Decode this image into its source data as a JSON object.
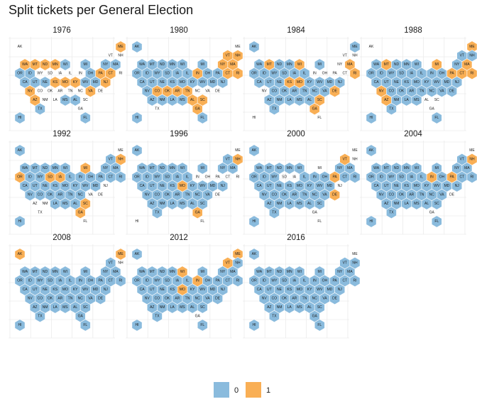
{
  "chart_data": {
    "type": "hex-tile-map",
    "title": "Split tickets per General Election",
    "legend": {
      "placement": "bottom",
      "entries": [
        {
          "label": "0",
          "color": "#8ABBDD"
        },
        {
          "label": "1",
          "color": "#F9AF55"
        }
      ]
    },
    "states": [
      "AK",
      "ME",
      "VT",
      "NH",
      "WA",
      "MT",
      "ND",
      "MN",
      "WI",
      "MI",
      "NY",
      "MA",
      "OR",
      "ID",
      "WY",
      "SD",
      "IA",
      "IL",
      "IN",
      "OH",
      "PA",
      "CT",
      "RI",
      "CA",
      "UT",
      "NE",
      "KS",
      "MO",
      "KY",
      "WV",
      "MD",
      "NJ",
      "NV",
      "CO",
      "OK",
      "AR",
      "TN",
      "NC",
      "VA",
      "DE",
      "AZ",
      "NM",
      "LA",
      "MS",
      "AL",
      "SC",
      "TX",
      "GA",
      "HI",
      "FL"
    ],
    "panels": [
      {
        "year": "1976",
        "zero": [
          "CA",
          "UT",
          "NE",
          "OR",
          "ID",
          "WI",
          "MI",
          "OH",
          "NY",
          "MA",
          "WV",
          "MD",
          "AL",
          "MS",
          "TX",
          "HI",
          "FL"
        ],
        "one": [
          "ME",
          "WA",
          "MT",
          "ND",
          "MN",
          "PA",
          "CT",
          "KY",
          "NJ",
          "NV",
          "KS",
          "MO",
          "VA",
          "AZ"
        ]
      },
      {
        "year": "1980",
        "zero": [
          "AK",
          "WA",
          "MT",
          "ND",
          "MN",
          "WI",
          "MI",
          "OR",
          "ID",
          "WY",
          "SD",
          "IA",
          "IL",
          "OH",
          "PA",
          "CA",
          "UT",
          "NE",
          "KS",
          "MO",
          "KY",
          "WV",
          "MD",
          "NJ",
          "NV",
          "AZ",
          "NM",
          "LA",
          "MS",
          "HI",
          "FL"
        ],
        "one": [
          "VT",
          "NH",
          "NY",
          "MA",
          "IN",
          "CT",
          "RI",
          "CO",
          "OK",
          "AR",
          "TN",
          "AL",
          "SC",
          "GA"
        ]
      },
      {
        "year": "1984",
        "zero": [
          "AK",
          "ME",
          "WA",
          "ND",
          "MN",
          "MI",
          "OR",
          "ID",
          "WY",
          "SD",
          "IA",
          "IL",
          "CA",
          "UT",
          "NE",
          "KY",
          "WV",
          "MD",
          "NJ",
          "CO",
          "OK",
          "AR",
          "TN",
          "NC",
          "VA",
          "AZ",
          "NM",
          "LA",
          "MS",
          "AL",
          "TX"
        ],
        "one": [
          "MT",
          "WI",
          "MA",
          "RI",
          "KS",
          "MO",
          "DE",
          "SC",
          "GA"
        ]
      },
      {
        "year": "1988",
        "zero": [
          "VT",
          "NH",
          "WA",
          "ND",
          "MN",
          "WI",
          "NY",
          "OR",
          "ID",
          "WY",
          "SD",
          "IA",
          "IL",
          "IN",
          "OH",
          "CA",
          "UT",
          "NE",
          "KS",
          "MO",
          "KY",
          "WV",
          "MD",
          "NJ",
          "CO",
          "OK",
          "AR",
          "TN",
          "NC",
          "VA",
          "DE",
          "NM",
          "LA",
          "MS",
          "TX",
          "HI",
          "FL"
        ],
        "one": [
          "ME",
          "MT",
          "MI",
          "MA",
          "PA",
          "CT",
          "RI",
          "NV",
          "AZ"
        ]
      },
      {
        "year": "1992",
        "zero": [
          "AK",
          "VT",
          "WA",
          "MT",
          "ND",
          "MN",
          "WI",
          "NY",
          "MA",
          "ID",
          "WY",
          "IL",
          "IN",
          "OH",
          "PA",
          "CT",
          "RI",
          "CA",
          "UT",
          "NE",
          "KS",
          "MO",
          "KY",
          "WV",
          "MD",
          "NV",
          "CO",
          "OK",
          "AR",
          "TN",
          "NC",
          "LA",
          "MS",
          "AL",
          "HI"
        ],
        "one": [
          "NH",
          "MI",
          "OR",
          "SD",
          "IA",
          "SC",
          "GA"
        ]
      },
      {
        "year": "1996",
        "zero": [
          "AK",
          "VT",
          "WA",
          "MT",
          "ND",
          "MN",
          "WI",
          "MI",
          "NY",
          "MA",
          "OR",
          "ID",
          "WY",
          "SD",
          "IA",
          "IL",
          "CA",
          "UT",
          "NE",
          "KS",
          "KY",
          "WV",
          "MD",
          "NJ",
          "NV",
          "CO",
          "OK",
          "AR",
          "TN",
          "NC",
          "VA",
          "AZ",
          "NM",
          "LA",
          "MS",
          "AL",
          "SC",
          "TX"
        ],
        "one": [
          "NH",
          "MO",
          "GA"
        ]
      },
      {
        "year": "2000",
        "zero": [
          "AK",
          "WA",
          "MT",
          "ND",
          "MN",
          "WI",
          "NY",
          "MA",
          "OR",
          "ID",
          "WY",
          "IL",
          "IN",
          "OH",
          "CT",
          "RI",
          "CA",
          "UT",
          "NE",
          "KS",
          "MO",
          "KY",
          "WV",
          "MD",
          "NV",
          "CO",
          "OK",
          "AR",
          "TN",
          "NC",
          "VA",
          "AZ",
          "NM",
          "LA",
          "MS",
          "AL",
          "SC",
          "TX",
          "HI"
        ],
        "one": [
          "VT",
          "PA",
          "DE"
        ]
      },
      {
        "year": "2004",
        "zero": [
          "AK",
          "VT",
          "WA",
          "MT",
          "ND",
          "MN",
          "WI",
          "MI",
          "NY",
          "MA",
          "OR",
          "ID",
          "WY",
          "SD",
          "IA",
          "IL",
          "OH",
          "CT",
          "RI",
          "CA",
          "UT",
          "NE",
          "KS",
          "MO",
          "KY",
          "WV",
          "MD",
          "NJ",
          "NV",
          "CO",
          "OK",
          "AR",
          "TN",
          "NC",
          "VA",
          "AZ",
          "NM",
          "LA",
          "MS",
          "AL",
          "SC",
          "TX",
          "HI",
          "FL"
        ],
        "one": [
          "NH",
          "IN",
          "PA"
        ]
      },
      {
        "year": "2008",
        "zero": [
          "VT",
          "WA",
          "MT",
          "ND",
          "MN",
          "WI",
          "MI",
          "NY",
          "MA",
          "OR",
          "ID",
          "WY",
          "SD",
          "IA",
          "IL",
          "IN",
          "OH",
          "PA",
          "CT",
          "RI",
          "CA",
          "UT",
          "NE",
          "KS",
          "MO",
          "KY",
          "WV",
          "MD",
          "NJ",
          "NV",
          "CO",
          "OK",
          "AR",
          "TN",
          "NC",
          "VA",
          "DE",
          "AZ",
          "NM",
          "LA",
          "MS",
          "AL",
          "SC",
          "TX",
          "GA",
          "HI",
          "FL"
        ],
        "one": [
          "AK",
          "ME"
        ]
      },
      {
        "year": "2012",
        "zero": [
          "AK",
          "NH",
          "WA",
          "MT",
          "ND",
          "MN",
          "MI",
          "NY",
          "MA",
          "OR",
          "ID",
          "WY",
          "SD",
          "IA",
          "IL",
          "OH",
          "PA",
          "CT",
          "RI",
          "CA",
          "UT",
          "NE",
          "KS",
          "KY",
          "WV",
          "MD",
          "NJ",
          "NV",
          "CO",
          "OK",
          "AR",
          "TN",
          "NC",
          "VA",
          "DE",
          "AZ",
          "NM",
          "LA",
          "MS",
          "AL",
          "SC",
          "TX",
          "HI",
          "FL"
        ],
        "one": [
          "ME",
          "VT",
          "WI",
          "IN",
          "MO"
        ]
      },
      {
        "year": "2016",
        "zero": [
          "AK",
          "VT",
          "NH",
          "WA",
          "MT",
          "ND",
          "MN",
          "WI",
          "MI",
          "NY",
          "MA",
          "OR",
          "ID",
          "WY",
          "SD",
          "IA",
          "IL",
          "IN",
          "OH",
          "PA",
          "CT",
          "RI",
          "CA",
          "UT",
          "NE",
          "KS",
          "MO",
          "KY",
          "WV",
          "MD",
          "NJ",
          "NV",
          "CO",
          "OK",
          "AR",
          "TN",
          "NC",
          "VA",
          "DE",
          "AZ",
          "NM",
          "LA",
          "MS",
          "AL",
          "SC",
          "TX",
          "GA",
          "HI",
          "FL"
        ],
        "one": []
      }
    ]
  }
}
